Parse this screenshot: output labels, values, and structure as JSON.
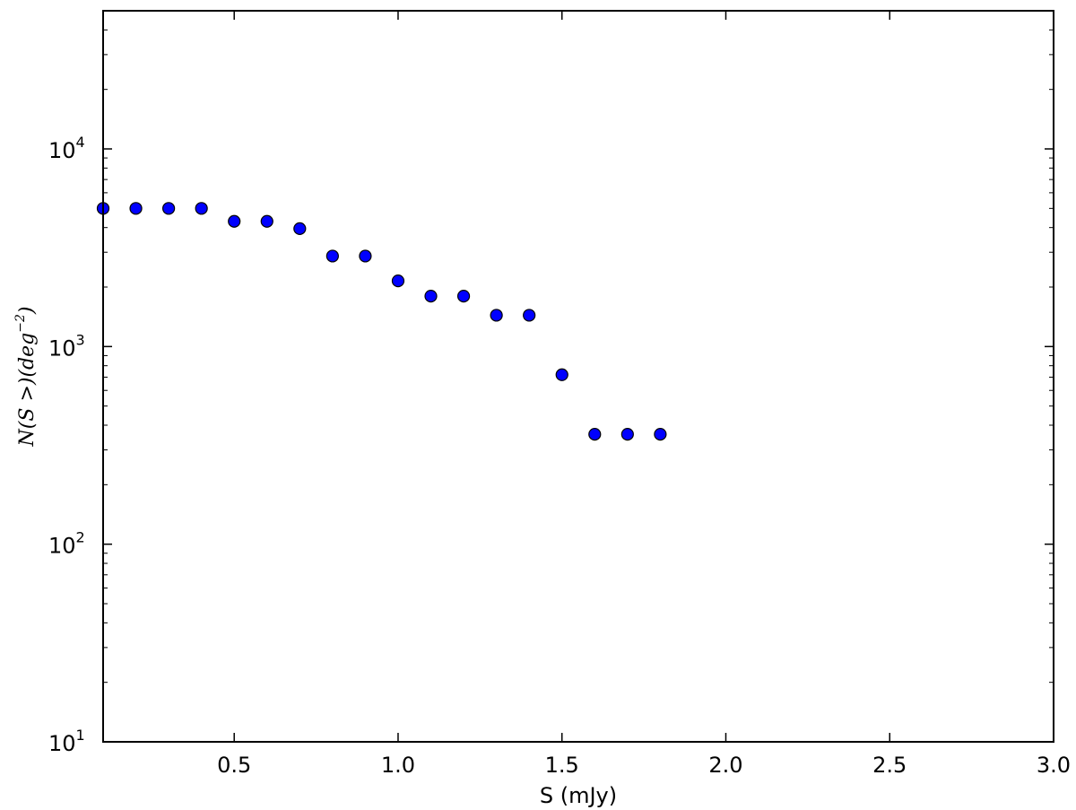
{
  "chart_data": {
    "type": "scatter",
    "xlabel": "S (mJy)",
    "ylabel": {
      "text_main": "N(S >)(deg",
      "text_exp": "−2",
      "text_close": ")"
    },
    "xlim": [
      0.1,
      3.0
    ],
    "ylim": [
      10,
      50000
    ],
    "yscale": "log",
    "x_ticks": [
      {
        "value": 0.5,
        "label": "0.5"
      },
      {
        "value": 1.0,
        "label": "1.0"
      },
      {
        "value": 1.5,
        "label": "1.5"
      },
      {
        "value": 2.0,
        "label": "2.0"
      },
      {
        "value": 2.5,
        "label": "2.5"
      },
      {
        "value": 3.0,
        "label": "3.0"
      }
    ],
    "y_ticks": [
      {
        "value": 10,
        "base": "10",
        "exp": "1"
      },
      {
        "value": 100,
        "base": "10",
        "exp": "2"
      },
      {
        "value": 1000,
        "base": "10",
        "exp": "3"
      },
      {
        "value": 10000,
        "base": "10",
        "exp": "4"
      }
    ],
    "grid": false,
    "series": [
      {
        "marker_color": "#0000ff",
        "points": [
          {
            "x": 0.1,
            "y": 5000
          },
          {
            "x": 0.2,
            "y": 5000
          },
          {
            "x": 0.3,
            "y": 5000
          },
          {
            "x": 0.4,
            "y": 5000
          },
          {
            "x": 0.5,
            "y": 4300
          },
          {
            "x": 0.6,
            "y": 4300
          },
          {
            "x": 0.7,
            "y": 3950
          },
          {
            "x": 0.8,
            "y": 2870
          },
          {
            "x": 0.9,
            "y": 2870
          },
          {
            "x": 1.0,
            "y": 2150
          },
          {
            "x": 1.1,
            "y": 1800
          },
          {
            "x": 1.2,
            "y": 1800
          },
          {
            "x": 1.3,
            "y": 1440
          },
          {
            "x": 1.4,
            "y": 1440
          },
          {
            "x": 1.5,
            "y": 720
          },
          {
            "x": 1.6,
            "y": 360
          },
          {
            "x": 1.7,
            "y": 360
          },
          {
            "x": 1.8,
            "y": 360
          }
        ]
      }
    ]
  }
}
